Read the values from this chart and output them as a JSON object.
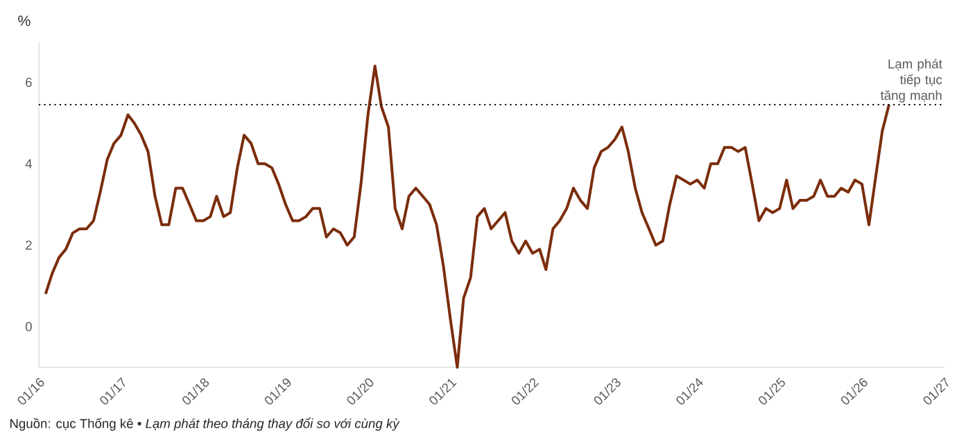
{
  "chart_data": {
    "type": "line",
    "ylabel": "%",
    "annotations": [
      "Nguồn: cục Thống kê • *Lạm phát theo tháng thay đổi so với cùng kỳ*"
    ],
    "x": [
      "2016-01-31",
      "2016-02-29",
      "2016-03-31",
      "2016-04-30",
      "2016-05-31",
      "2016-06-30",
      "2016-07-31",
      "2016-08-31",
      "2016-09-30",
      "2016-10-31",
      "2016-11-30",
      "2016-12-31",
      "2017-01-31",
      "2017-02-28",
      "2017-03-31",
      "2017-04-30",
      "2017-05-31",
      "2017-06-30",
      "2017-07-31",
      "2017-08-31",
      "2017-09-30",
      "2017-10-31",
      "2017-11-30",
      "2017-12-31",
      "2018-01-31",
      "2018-02-28",
      "2018-03-31",
      "2018-04-30",
      "2018-05-31",
      "2018-06-30",
      "2018-07-31",
      "2018-08-31",
      "2018-09-30",
      "2018-10-31",
      "2018-11-30",
      "2018-12-31",
      "2019-01-31",
      "2019-02-28",
      "2019-03-31",
      "2019-04-30",
      "2019-05-31",
      "2019-06-30",
      "2019-07-31",
      "2019-08-31",
      "2019-09-30",
      "2019-10-31",
      "2019-11-30",
      "2019-12-31",
      "2020-01-31",
      "2020-02-29",
      "2020-03-31",
      "2020-04-30",
      "2020-05-31",
      "2020-06-30",
      "2020-07-31",
      "2020-08-31",
      "2020-09-30",
      "2020-10-31",
      "2020-11-30",
      "2020-12-31",
      "2021-01-31",
      "2021-02-28",
      "2021-03-31",
      "2021-04-30",
      "2021-05-31",
      "2021-06-30",
      "2021-07-31",
      "2021-08-31",
      "2021-09-30",
      "2021-10-31",
      "2021-11-30",
      "2021-12-31",
      "2022-01-31",
      "2022-02-28",
      "2022-03-31",
      "2022-04-30",
      "2022-05-31",
      "2022-06-30",
      "2022-07-31",
      "2022-08-31",
      "2022-09-30",
      "2022-10-31",
      "2022-11-30",
      "2022-12-31",
      "2023-01-31",
      "2023-02-28",
      "2023-03-31",
      "2023-04-30",
      "2023-05-31",
      "2023-06-30",
      "2023-07-31",
      "2023-08-31",
      "2023-09-30",
      "2023-10-31",
      "2023-11-30",
      "2023-12-31",
      "2024-01-31",
      "2024-02-29",
      "2024-03-31",
      "2024-04-30",
      "2024-05-31",
      "2024-06-30",
      "2024-07-31",
      "2024-08-31",
      "2024-09-30",
      "2024-10-31",
      "2024-11-30",
      "2024-12-31",
      "2025-01-31",
      "2025-02-28",
      "2025-03-31",
      "2025-04-30",
      "2025-05-31",
      "2025-06-30",
      "2025-07-31",
      "2025-08-31",
      "2025-09-30",
      "2025-10-31",
      "2025-11-30",
      "2025-12-31",
      "2026-01-31",
      "2026-02-28",
      "2026-03-31",
      "2026-04-30"
    ],
    "series": [
      {
        "color": "#7b2d0c",
        "values": [
          0.8,
          1.3,
          1.7,
          1.9,
          2.3,
          2.4,
          2.4,
          2.6,
          3.3,
          4.1,
          4.5,
          4.7,
          5.2,
          5.0,
          4.7,
          4.3,
          3.2,
          2.5,
          2.5,
          3.4,
          3.4,
          3.0,
          2.6,
          2.6,
          2.7,
          3.2,
          2.7,
          2.8,
          3.9,
          4.7,
          4.5,
          4.0,
          4.0,
          3.9,
          3.5,
          3.0,
          2.6,
          2.6,
          2.7,
          2.9,
          2.9,
          2.2,
          2.4,
          2.3,
          2.0,
          2.2,
          3.5,
          5.2,
          6.4,
          5.4,
          4.9,
          2.9,
          2.4,
          3.2,
          3.4,
          3.2,
          3.0,
          2.5,
          1.5,
          0.2,
          -1.0,
          0.7,
          1.2,
          2.7,
          2.9,
          2.4,
          2.6,
          2.8,
          2.1,
          1.8,
          2.1,
          1.8,
          1.9,
          1.4,
          2.4,
          2.6,
          2.9,
          3.4,
          3.1,
          2.9,
          3.9,
          4.3,
          4.4,
          4.6,
          4.9,
          4.3,
          3.4,
          2.8,
          2.4,
          2.0,
          2.1,
          3.0,
          3.7,
          3.6,
          3.5,
          3.6,
          3.4,
          4.0,
          4.0,
          4.4,
          4.4,
          4.3,
          4.4,
          3.5,
          2.6,
          2.9,
          2.8,
          2.9,
          3.6,
          2.9,
          3.1,
          3.1,
          3.2,
          3.6,
          3.2,
          3.2,
          3.4,
          3.3,
          3.6,
          3.5,
          2.5,
          3.6,
          4.8,
          5.45
        ]
      }
    ],
    "xlim": [
      "2016-01-01",
      "2027-01-01"
    ],
    "xticks": [
      {
        "value": "2016-01-01",
        "label": "01/16"
      },
      {
        "value": "2017-01-01",
        "label": "01/17"
      },
      {
        "value": "2018-01-01",
        "label": "01/18"
      },
      {
        "value": "2019-01-01",
        "label": "01/19"
      },
      {
        "value": "2020-01-01",
        "label": "01/20"
      },
      {
        "value": "2021-01-01",
        "label": "01/21"
      },
      {
        "value": "2022-01-01",
        "label": "01/22"
      },
      {
        "value": "2023-01-01",
        "label": "01/23"
      },
      {
        "value": "2024-01-01",
        "label": "01/24"
      },
      {
        "value": "2025-01-01",
        "label": "01/25"
      },
      {
        "value": "2026-01-01",
        "label": "01/26"
      },
      {
        "value": "2027-01-01",
        "label": "01/27"
      }
    ],
    "ylim": [
      -1,
      7
    ],
    "yticks": [
      0,
      2,
      4,
      6
    ],
    "ref_lines": [
      {
        "axis": "y",
        "value": 5.45,
        "label": "Lạm phát tiếp tục tăng mạnh",
        "color": "#000000",
        "line_style": "dotted"
      }
    ],
    "grid": false,
    "marker": "none",
    "line_style": "solid"
  }
}
